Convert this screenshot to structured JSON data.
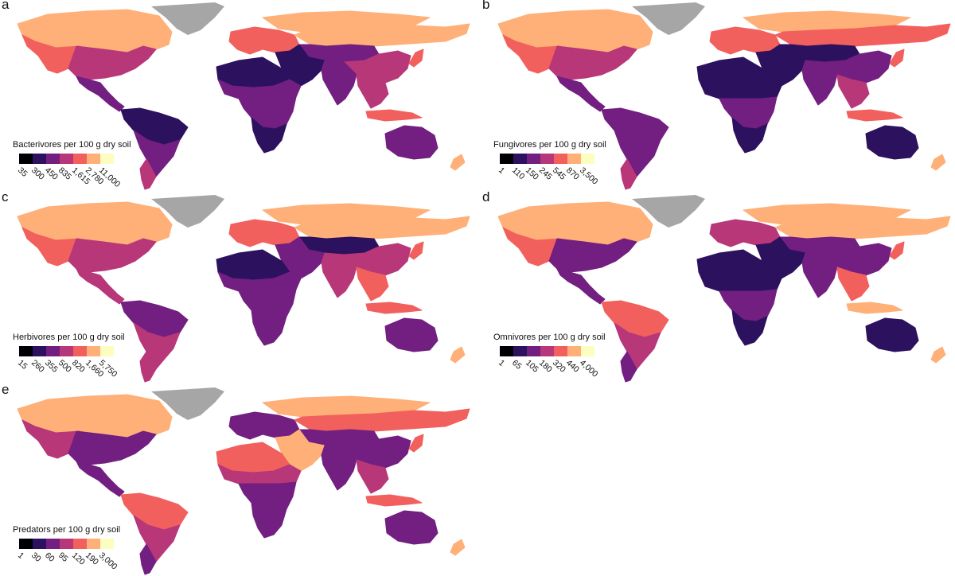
{
  "scale_colors": [
    "#000004",
    "#2c115f",
    "#721f81",
    "#b73779",
    "#f1605d",
    "#feb078",
    "#fcfdbf"
  ],
  "greenland_color": "#a6a6a6",
  "panels": [
    {
      "letter": "a",
      "title": "Bacterivores per 100 g dry soil",
      "ticks": [
        "35",
        "300",
        "450",
        "835",
        "1,615",
        "2,780",
        "11,000"
      ],
      "region_levels": {
        "north_america": 4,
        "canada": 5,
        "usa": 3,
        "central_america": 2,
        "south_america": 2,
        "amazon": 1,
        "southern_cone": 3,
        "europe": 4,
        "russia_north": 5,
        "siberia": 5,
        "central_asia": 2,
        "middle_east": 1,
        "africa_north": 1,
        "sahel": 2,
        "africa_central": 2,
        "africa_south": 1,
        "india": 2,
        "china": 3,
        "southeast_asia": 3,
        "indonesia": 4,
        "japan": 4,
        "australia": 2,
        "new_zealand": 5
      }
    },
    {
      "letter": "b",
      "title": "Fungivores per 100 g dry soil",
      "ticks": [
        "1",
        "110",
        "150",
        "245",
        "545",
        "870",
        "3,500"
      ],
      "region_levels": {
        "north_america": 4,
        "canada": 5,
        "usa": 3,
        "central_america": 2,
        "south_america": 2,
        "amazon": 2,
        "southern_cone": 3,
        "europe": 4,
        "russia_north": 5,
        "siberia": 4,
        "central_asia": 1,
        "middle_east": 1,
        "africa_north": 1,
        "sahel": 1,
        "africa_central": 2,
        "africa_south": 1,
        "india": 2,
        "china": 2,
        "southeast_asia": 3,
        "indonesia": 4,
        "japan": 4,
        "australia": 1,
        "new_zealand": 5
      }
    },
    {
      "letter": "c",
      "title": "Herbivores per 100 g dry soil",
      "ticks": [
        "15",
        "260",
        "355",
        "500",
        "820",
        "1,660",
        "5,750"
      ],
      "region_levels": {
        "north_america": 4,
        "canada": 5,
        "usa": 3,
        "central_america": 3,
        "south_america": 3,
        "amazon": 2,
        "southern_cone": 3,
        "europe": 4,
        "russia_north": 5,
        "siberia": 5,
        "central_asia": 1,
        "middle_east": 2,
        "africa_north": 1,
        "sahel": 2,
        "africa_central": 2,
        "africa_south": 2,
        "india": 3,
        "china": 3,
        "southeast_asia": 4,
        "indonesia": 4,
        "japan": 4,
        "australia": 2,
        "new_zealand": 5
      }
    },
    {
      "letter": "d",
      "title": "Omnivores per 100 g dry soil",
      "ticks": [
        "1",
        "65",
        "105",
        "180",
        "320",
        "440",
        "4,000"
      ],
      "region_levels": {
        "north_america": 4,
        "canada": 5,
        "usa": 2,
        "central_america": 2,
        "south_america": 3,
        "amazon": 4,
        "southern_cone": 2,
        "europe": 3,
        "russia_north": 5,
        "siberia": 5,
        "central_asia": 2,
        "middle_east": 1,
        "africa_north": 1,
        "sahel": 1,
        "africa_central": 2,
        "africa_south": 1,
        "india": 2,
        "china": 2,
        "southeast_asia": 4,
        "indonesia": 5,
        "japan": 4,
        "australia": 1,
        "new_zealand": 5
      }
    },
    {
      "letter": "e",
      "title": "Predators per 100 g dry soil",
      "ticks": [
        "1",
        "30",
        "60",
        "95",
        "120",
        "190",
        "3,000"
      ],
      "region_levels": {
        "north_america": 3,
        "canada": 5,
        "usa": 2,
        "central_america": 2,
        "south_america": 3,
        "amazon": 4,
        "southern_cone": 2,
        "europe": 2,
        "russia_north": 5,
        "siberia": 4,
        "central_asia": 2,
        "middle_east": 5,
        "africa_north": 4,
        "sahel": 3,
        "africa_central": 2,
        "africa_south": 2,
        "india": 2,
        "china": 2,
        "southeast_asia": 3,
        "indonesia": 4,
        "japan": 4,
        "australia": 2,
        "new_zealand": 5
      }
    }
  ]
}
